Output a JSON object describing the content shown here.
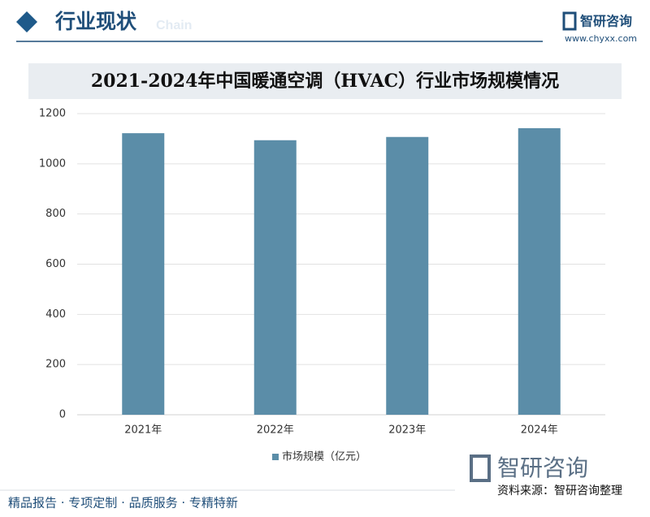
{
  "header": {
    "title": "行业现状",
    "subtitle": "Chain",
    "logo": "智研咨询",
    "url": "www.chyxx.com"
  },
  "chart_data": {
    "type": "bar",
    "title": "2021-2024年中国暖通空调（HVAC）行业市场规模情况",
    "categories": [
      "2021年",
      "2022年",
      "2023年",
      "2024年"
    ],
    "series": [
      {
        "name": "市场规模（亿元）",
        "color": "#5b8da8",
        "values": [
          1122,
          1094,
          1107,
          1142
        ]
      }
    ],
    "ylim": [
      0,
      1200
    ],
    "yticks": [
      0,
      200,
      400,
      600,
      800,
      1000,
      1200
    ],
    "grid": true,
    "legend": "bottom"
  },
  "footer": {
    "slogan": "精品报告 · 专项定制 · 品质服务 · 专精特新",
    "logo": "智研咨询",
    "source": "资料来源：智研咨询整理"
  }
}
